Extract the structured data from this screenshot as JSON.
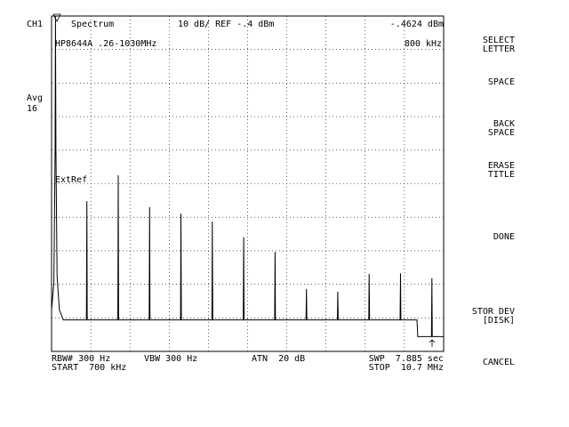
{
  "screen": {
    "channel": "CH1",
    "mode": "Spectrum",
    "scale_ref": "10 dB/ REF -.4 dBm",
    "marker_value": "-.4624 dBm",
    "title": "HP8644A .26-1030MHz",
    "marker_freq": "800 kHz",
    "avg": "Avg",
    "avg_count": "16",
    "ext_ref": "ExtRef",
    "rbw": "RBW# 300 Hz",
    "vbw": "VBW 300 Hz",
    "atn": "ATN  20 dB",
    "swp": "SWP  7.885 sec",
    "start": "START  700 kHz",
    "stop": "STOP  10.7 MHz",
    "softkeys": [
      [
        "SELECT",
        "LETTER"
      ],
      [
        "SPACE"
      ],
      [
        "BACK",
        "SPACE"
      ],
      [
        "ERASE",
        "TITLE"
      ],
      [
        "DONE"
      ],
      [
        "STOR DEV",
        "[DISK]"
      ],
      [
        "CANCEL"
      ]
    ]
  },
  "chart_data": {
    "type": "line",
    "x": [
      0.7,
      0.76,
      0.79,
      0.8,
      0.81,
      0.84,
      0.9,
      1.0,
      1.59,
      1.6,
      1.61,
      2.39,
      2.4,
      2.41,
      3.19,
      3.2,
      3.21,
      3.99,
      4.0,
      4.01,
      4.79,
      4.8,
      4.81,
      5.59,
      5.6,
      5.61,
      6.39,
      6.4,
      6.41,
      7.19,
      7.2,
      7.21,
      7.99,
      8.0,
      8.01,
      8.79,
      8.8,
      8.81,
      9.59,
      9.6,
      9.61,
      10.02,
      10.04,
      10.39,
      10.4,
      10.41,
      10.7
    ],
    "values": [
      -88,
      -80,
      -40,
      -0.46,
      -40,
      -78,
      -88,
      -91,
      -91,
      -55.6,
      -91,
      -91,
      -47.9,
      -91,
      -91,
      -57.4,
      -91,
      -91,
      -59.3,
      -91,
      -91,
      -61.7,
      -91,
      -91,
      -66.4,
      -91,
      -91,
      -70.7,
      -91,
      -91,
      -81.8,
      -91,
      -91,
      -82.6,
      -91,
      -91,
      -77.3,
      -91,
      -91,
      -77.1,
      -91,
      -91,
      -96,
      -96,
      -78.6,
      -96,
      -96
    ],
    "color": "#000000",
    "xlim": [
      0.7,
      10.7
    ],
    "ylim": [
      -100.4,
      -0.4
    ],
    "grid": true
  }
}
